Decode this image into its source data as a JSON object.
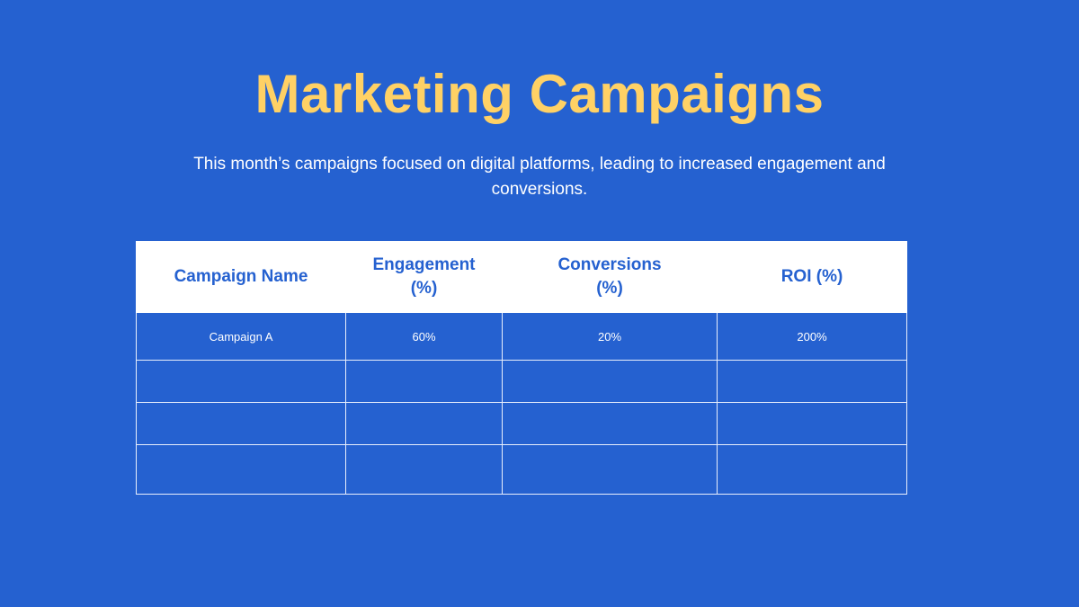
{
  "title": "Marketing Campaigns",
  "subtitle": "This month’s campaigns focused on digital platforms, leading to increased engagement and conversions.",
  "colors": {
    "background": "#2561d0",
    "title": "#ffd165",
    "header_bg": "#ffffff"
  },
  "table": {
    "headers": [
      "Campaign Name",
      "Engagement (%)",
      "Conversions (%)",
      "ROI (%)"
    ],
    "rows": [
      [
        "Campaign A",
        "60%",
        "20%",
        "200%"
      ],
      [
        "",
        "",
        "",
        ""
      ],
      [
        "",
        "",
        "",
        ""
      ],
      [
        "",
        "",
        "",
        ""
      ]
    ]
  }
}
